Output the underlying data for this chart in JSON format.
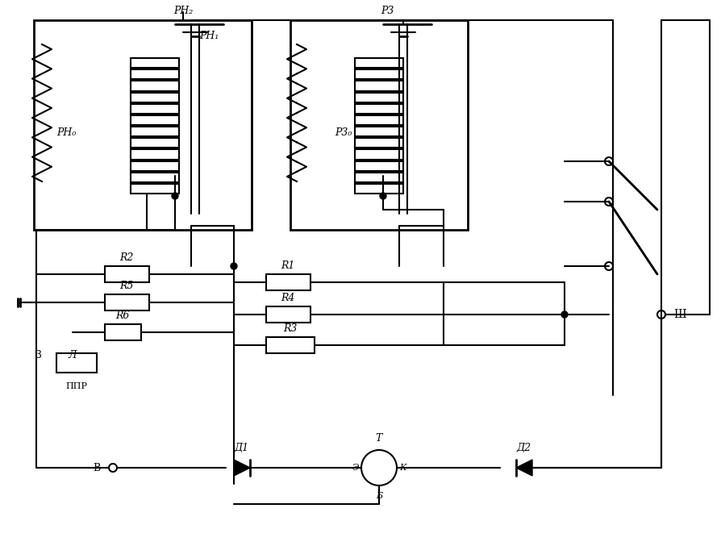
{
  "bg_color": "#ffffff",
  "line_color": "#000000",
  "line_width": 1.5,
  "fig_width": 8.94,
  "fig_height": 6.82,
  "labels": {
    "RH2": "РН₂",
    "RH1": "РН₁",
    "RH0": "РН₀",
    "R3_label": "Р3",
    "R30": "Р3₀",
    "R2": "R2",
    "R5": "R5",
    "R6": "R6",
    "R1": "R1",
    "R4": "R4",
    "R3": "R3",
    "Z": "З",
    "L": "Л",
    "PPR": "ППР",
    "D1": "Д1",
    "D2": "Д2",
    "T": "Т",
    "E": "Э",
    "K": "К",
    "B_label": "Б",
    "V": "В",
    "Sh": "Ш"
  }
}
